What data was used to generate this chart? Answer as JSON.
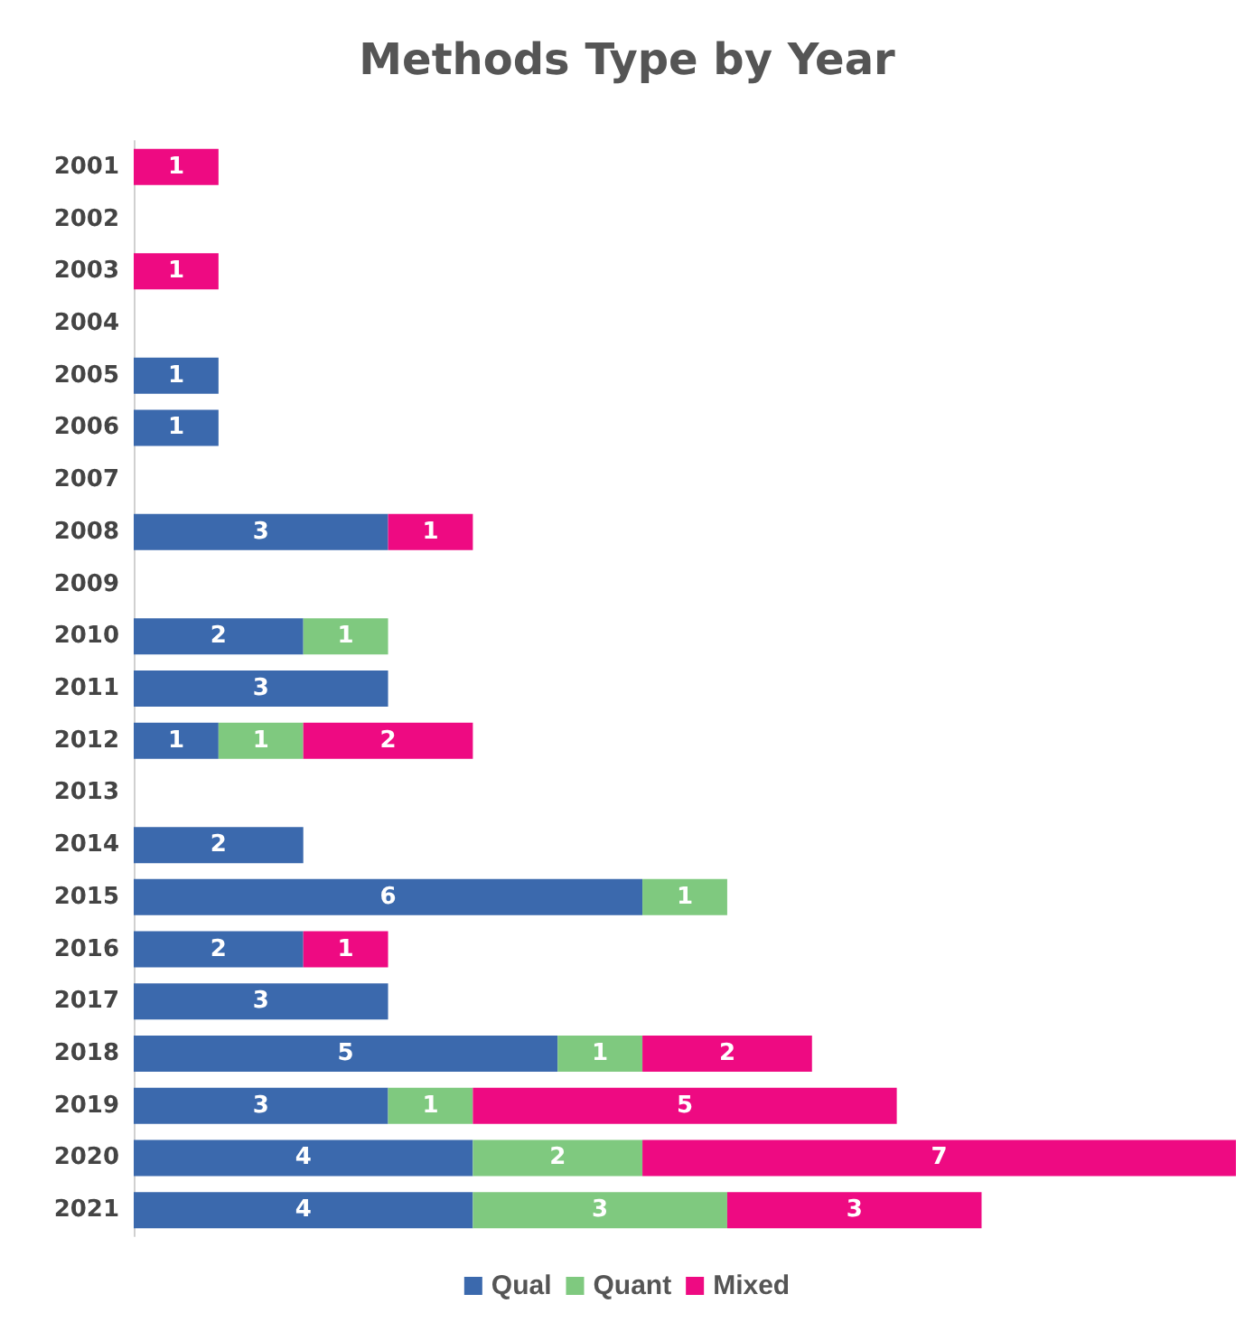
{
  "chart_data": {
    "type": "bar",
    "title": "Methods Type by Year",
    "orientation": "horizontal",
    "stacked": true,
    "data_labels": true,
    "legend": "bottom",
    "categories": [
      "2001",
      "2002",
      "2003",
      "2004",
      "2005",
      "2006",
      "2007",
      "2008",
      "2009",
      "2010",
      "2011",
      "2012",
      "2013",
      "2014",
      "2015",
      "2016",
      "2017",
      "2018",
      "2019",
      "2020",
      "2021"
    ],
    "series": [
      {
        "name": "Qual",
        "color": "#3b69ad",
        "values": [
          null,
          null,
          null,
          null,
          1,
          1,
          null,
          3,
          null,
          2,
          3,
          1,
          null,
          2,
          6,
          2,
          3,
          5,
          3,
          4,
          4
        ]
      },
      {
        "name": "Quant",
        "color": "#7fc97f",
        "values": [
          null,
          null,
          null,
          null,
          null,
          null,
          null,
          null,
          null,
          1,
          null,
          1,
          null,
          null,
          1,
          null,
          null,
          1,
          1,
          2,
          3
        ]
      },
      {
        "name": "Mixed",
        "color": "#ee0a82",
        "values": [
          1,
          null,
          1,
          null,
          null,
          null,
          null,
          1,
          null,
          null,
          null,
          2,
          null,
          null,
          null,
          1,
          null,
          2,
          5,
          7,
          3
        ]
      }
    ]
  }
}
